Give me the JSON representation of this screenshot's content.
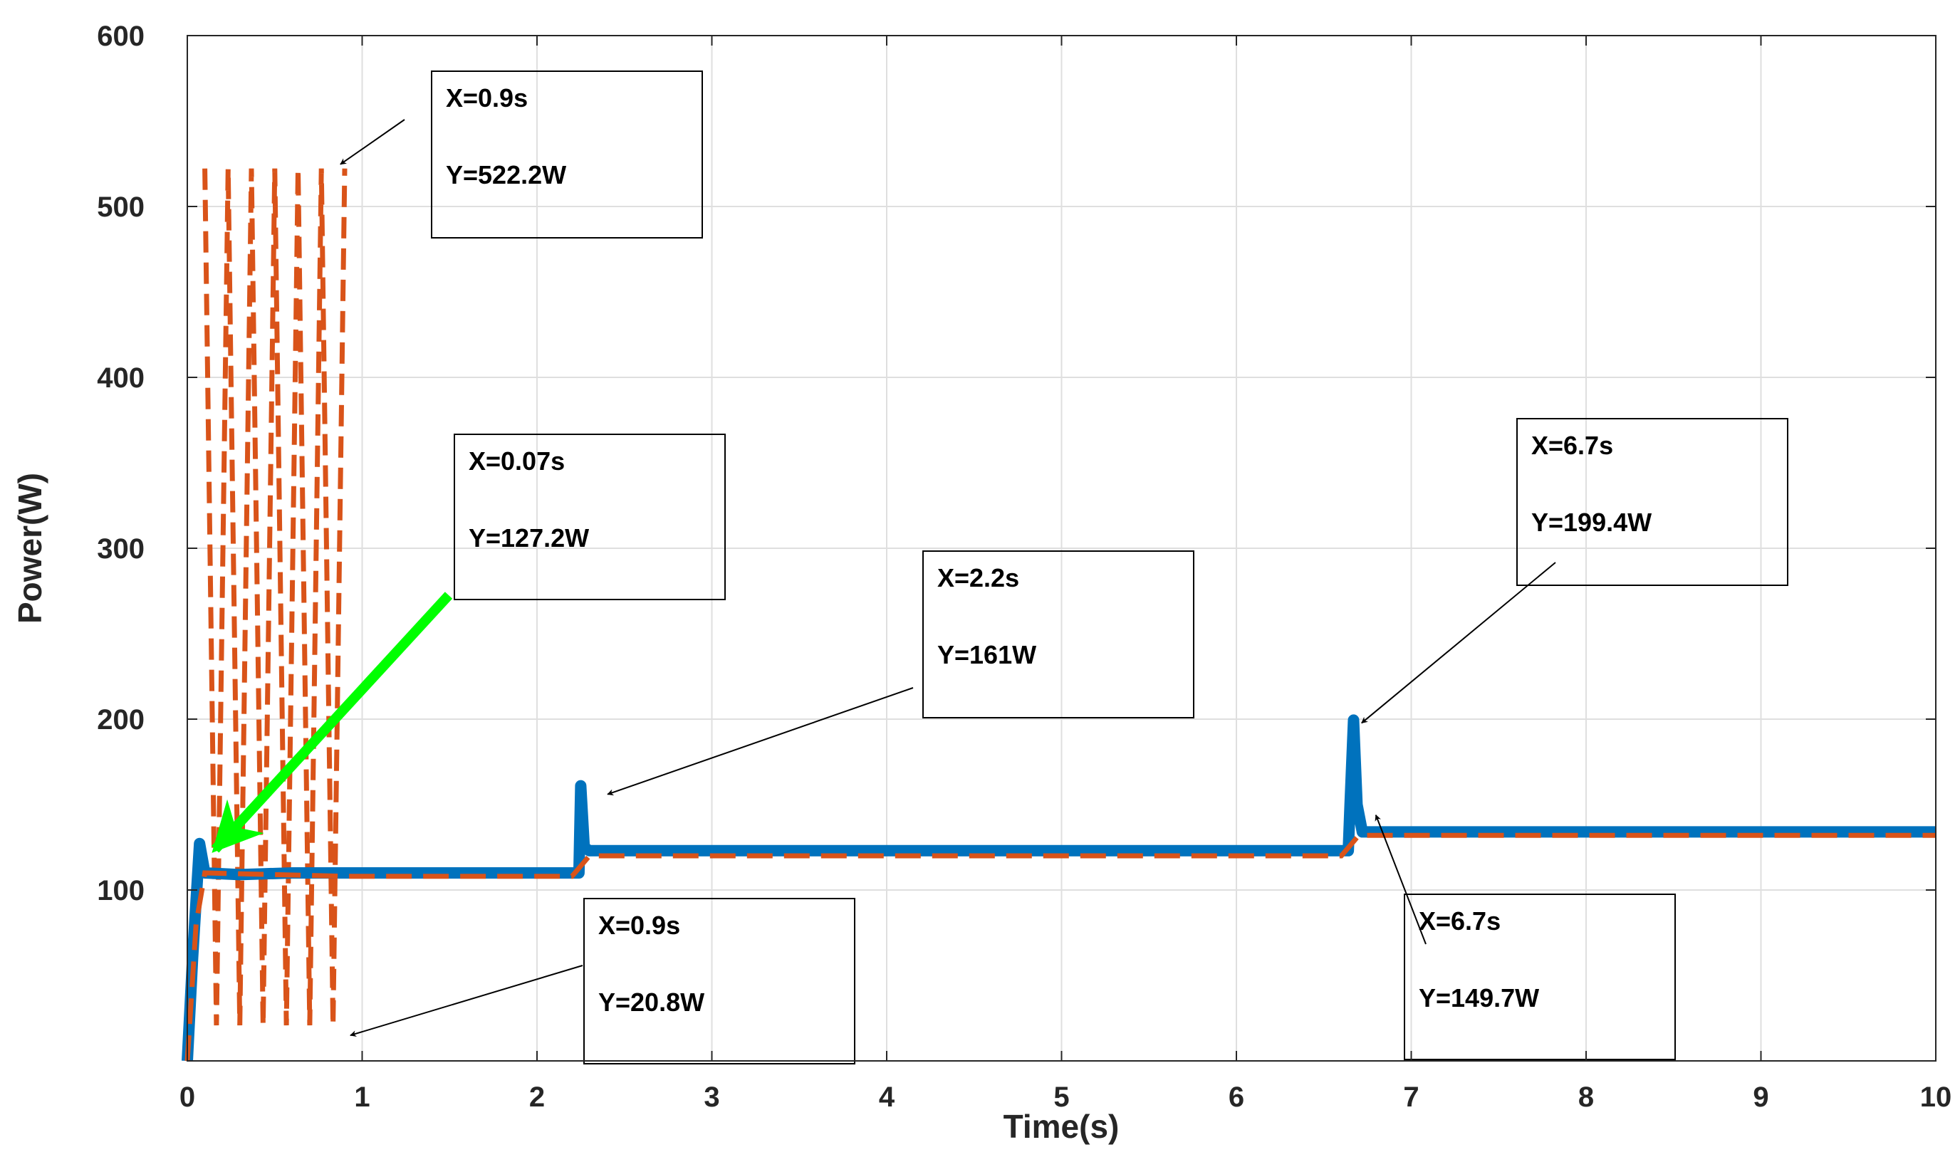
{
  "chart_data": {
    "type": "line",
    "title": "",
    "xlabel": "Time(s)",
    "ylabel": "Power(W)",
    "xlim": [
      0,
      10
    ],
    "ylim": [
      0,
      600
    ],
    "xticks": [
      "0",
      "1",
      "2",
      "3",
      "4",
      "5",
      "6",
      "7",
      "8",
      "9",
      "10"
    ],
    "yticks": [
      "100",
      "200",
      "300",
      "400",
      "500",
      "600"
    ],
    "grid": true,
    "legend": "none",
    "colors": {
      "solid": "#0072BD",
      "dashed": "#D95319",
      "pointer_green": "#00FF00"
    },
    "series": [
      {
        "style": "solid",
        "x": [
          0,
          0.03,
          0.07,
          0.1,
          0.3,
          0.6,
          0.9,
          1.2,
          2.0,
          2.24,
          2.25,
          2.27,
          2.3,
          4.0,
          6.0,
          6.64,
          6.65,
          6.67,
          6.69,
          6.72,
          8.0,
          10.0
        ],
        "y": [
          0,
          60,
          127.2,
          110,
          109,
          110,
          110,
          110,
          110,
          110,
          161,
          125,
          123,
          123,
          123,
          123,
          150,
          199.4,
          150,
          134,
          134,
          134
        ]
      },
      {
        "style": "dashed",
        "envelope": {
          "x_start": 0.1,
          "x_end": 0.9,
          "upper": 522.2,
          "lower": 20.8
        },
        "x": [
          0,
          0.05,
          0.1,
          0.9,
          1.0,
          2.2,
          2.3,
          6.6,
          6.7,
          10.0
        ],
        "y": [
          0,
          80,
          110,
          108,
          108,
          108,
          120,
          120,
          132,
          132
        ]
      }
    ],
    "annotations": [
      {
        "lines": [
          "X=0.9s",
          "Y=522.2W"
        ],
        "x": 0.9,
        "y": 522.2
      },
      {
        "lines": [
          "X=0.07s",
          "Y=127.2W"
        ],
        "x": 0.07,
        "y": 127.2
      },
      {
        "lines": [
          "X=2.2s",
          "Y=161W"
        ],
        "x": 2.2,
        "y": 161
      },
      {
        "lines": [
          "X=6.7s",
          "Y=199.4W"
        ],
        "x": 6.7,
        "y": 199.4
      },
      {
        "lines": [
          "X=0.9s",
          "Y=20.8W"
        ],
        "x": 0.9,
        "y": 20.8
      },
      {
        "lines": [
          "X=6.7s",
          "Y=149.7W"
        ],
        "x": 6.7,
        "y": 149.7
      }
    ]
  }
}
